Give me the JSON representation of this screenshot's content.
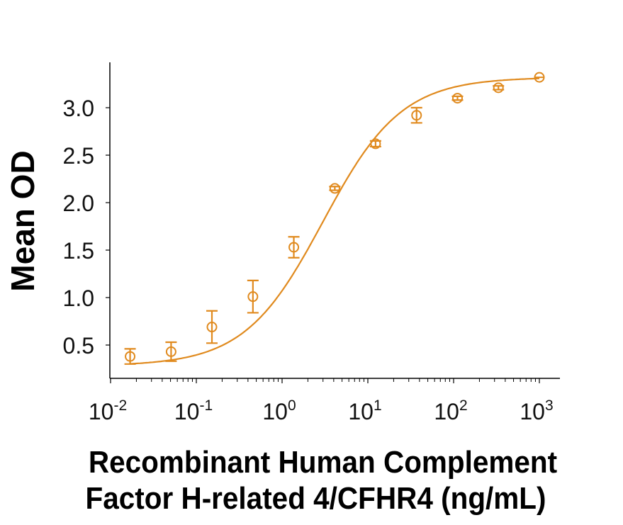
{
  "chart_data": {
    "type": "scatter",
    "subtype": "dose-response with 4PL fit curve and error bars",
    "title": "",
    "xlabel_line1": "Recombinant Human Complement",
    "xlabel_line2": "Factor H-related 4/CFHR4 (ng/mL)",
    "xlabel": "Recombinant Human Complement Factor H-related 4/CFHR4 (ng/mL)",
    "ylabel": "Mean OD",
    "xscale": "log",
    "xlim": [
      0.01,
      2000
    ],
    "ylim": [
      0.2,
      3.5
    ],
    "x_ticks": [
      {
        "value": 0.01,
        "base": "10",
        "exp": "-2"
      },
      {
        "value": 0.1,
        "base": "10",
        "exp": "-1"
      },
      {
        "value": 1,
        "base": "10",
        "exp": "0"
      },
      {
        "value": 10,
        "base": "10",
        "exp": "1"
      },
      {
        "value": 100,
        "base": "10",
        "exp": "2"
      },
      {
        "value": 1000,
        "base": "10",
        "exp": "3"
      }
    ],
    "y_ticks": [
      "0.5",
      "1.0",
      "1.5",
      "2.0",
      "2.5",
      "3.0"
    ],
    "y_tick_values": [
      0.5,
      1.0,
      1.5,
      2.0,
      2.5,
      3.0
    ],
    "grid": false,
    "legend": null,
    "color": "#E08A1E",
    "series": [
      {
        "name": "CFHR4",
        "x": [
          0.0169,
          0.0508,
          0.152,
          0.457,
          1.37,
          4.12,
          12.3,
          37.0,
          111,
          333,
          1000
        ],
        "y": [
          0.38,
          0.43,
          0.69,
          1.01,
          1.53,
          2.15,
          2.62,
          2.92,
          3.1,
          3.21,
          3.32
        ],
        "error": [
          0.08,
          0.1,
          0.17,
          0.17,
          0.11,
          0.02,
          0.03,
          0.08,
          0.02,
          0.02,
          0.01
        ]
      }
    ],
    "fit": {
      "model": "4PL",
      "bottom": 0.28,
      "top": 3.32,
      "ec50": 3.0,
      "hill": 0.95
    }
  }
}
